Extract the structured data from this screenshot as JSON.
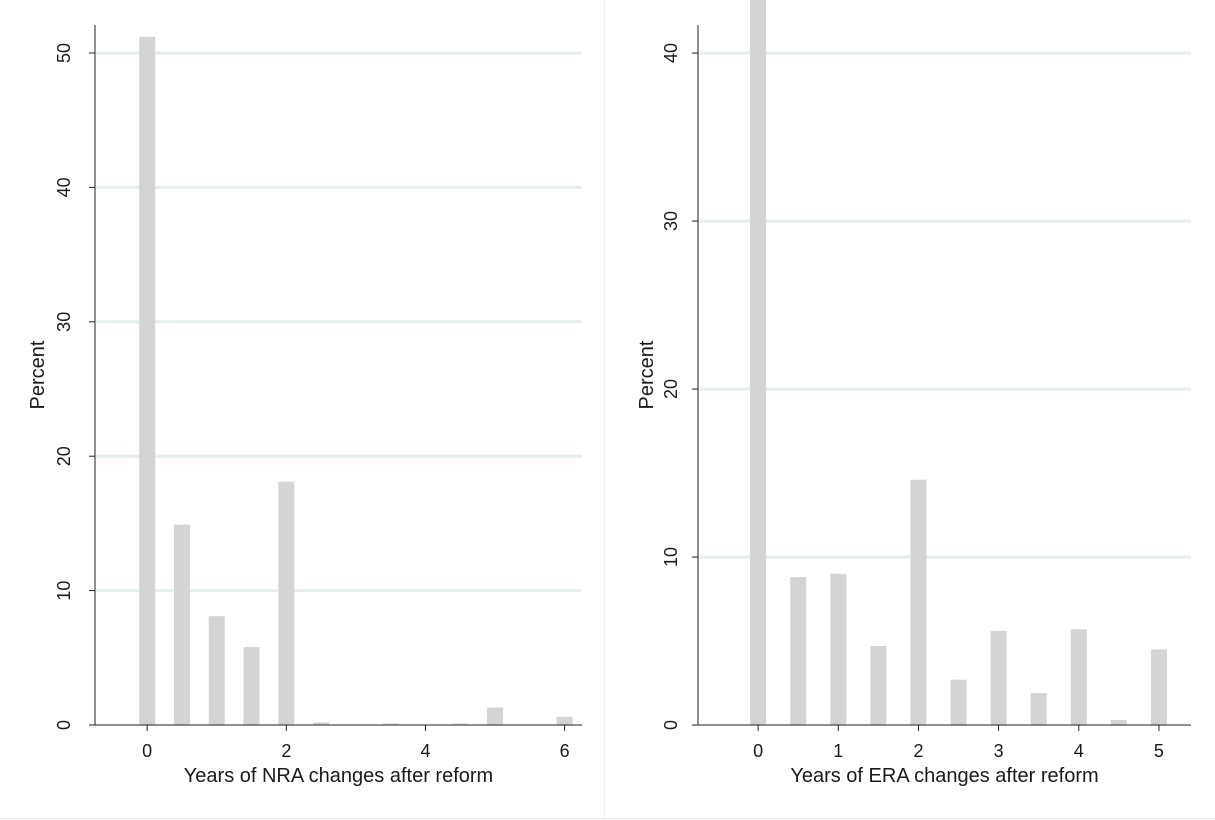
{
  "chart_data": [
    {
      "type": "bar",
      "xlabel": "Years of NRA changes after reform",
      "ylabel": "Percent",
      "xlim": [
        -0.75,
        6.25
      ],
      "ylim": [
        0,
        50
      ],
      "xticks": [
        "0",
        "2",
        "4",
        "6"
      ],
      "yticks": [
        "0",
        "10",
        "20",
        "30",
        "40",
        "50"
      ],
      "grid": true,
      "bar_color": "#d4d4d4",
      "grid_color": "#e6eeee",
      "x": [
        0,
        0.5,
        1,
        1.5,
        2,
        2.5,
        3.5,
        4.5,
        5,
        6
      ],
      "values": [
        51.2,
        14.9,
        8.1,
        5.8,
        18.1,
        0.2,
        0.1,
        0.1,
        1.3,
        0.6
      ]
    },
    {
      "type": "bar",
      "xlabel": "Years of ERA changes after reform",
      "ylabel": "Percent",
      "xlim": [
        -0.75,
        5.4
      ],
      "ylim": [
        0,
        40
      ],
      "xticks": [
        "0",
        "1",
        "2",
        "3",
        "4",
        "5"
      ],
      "yticks": [
        "0",
        "10",
        "20",
        "30",
        "40"
      ],
      "grid": true,
      "bar_color": "#d4d4d4",
      "grid_color": "#e6eeee",
      "x": [
        0,
        0.5,
        1,
        1.5,
        2,
        2.5,
        3,
        3.5,
        4,
        4.5,
        5
      ],
      "values": [
        43.2,
        8.8,
        9.0,
        4.7,
        14.6,
        2.7,
        5.6,
        1.9,
        5.7,
        0.3,
        4.5
      ]
    }
  ]
}
